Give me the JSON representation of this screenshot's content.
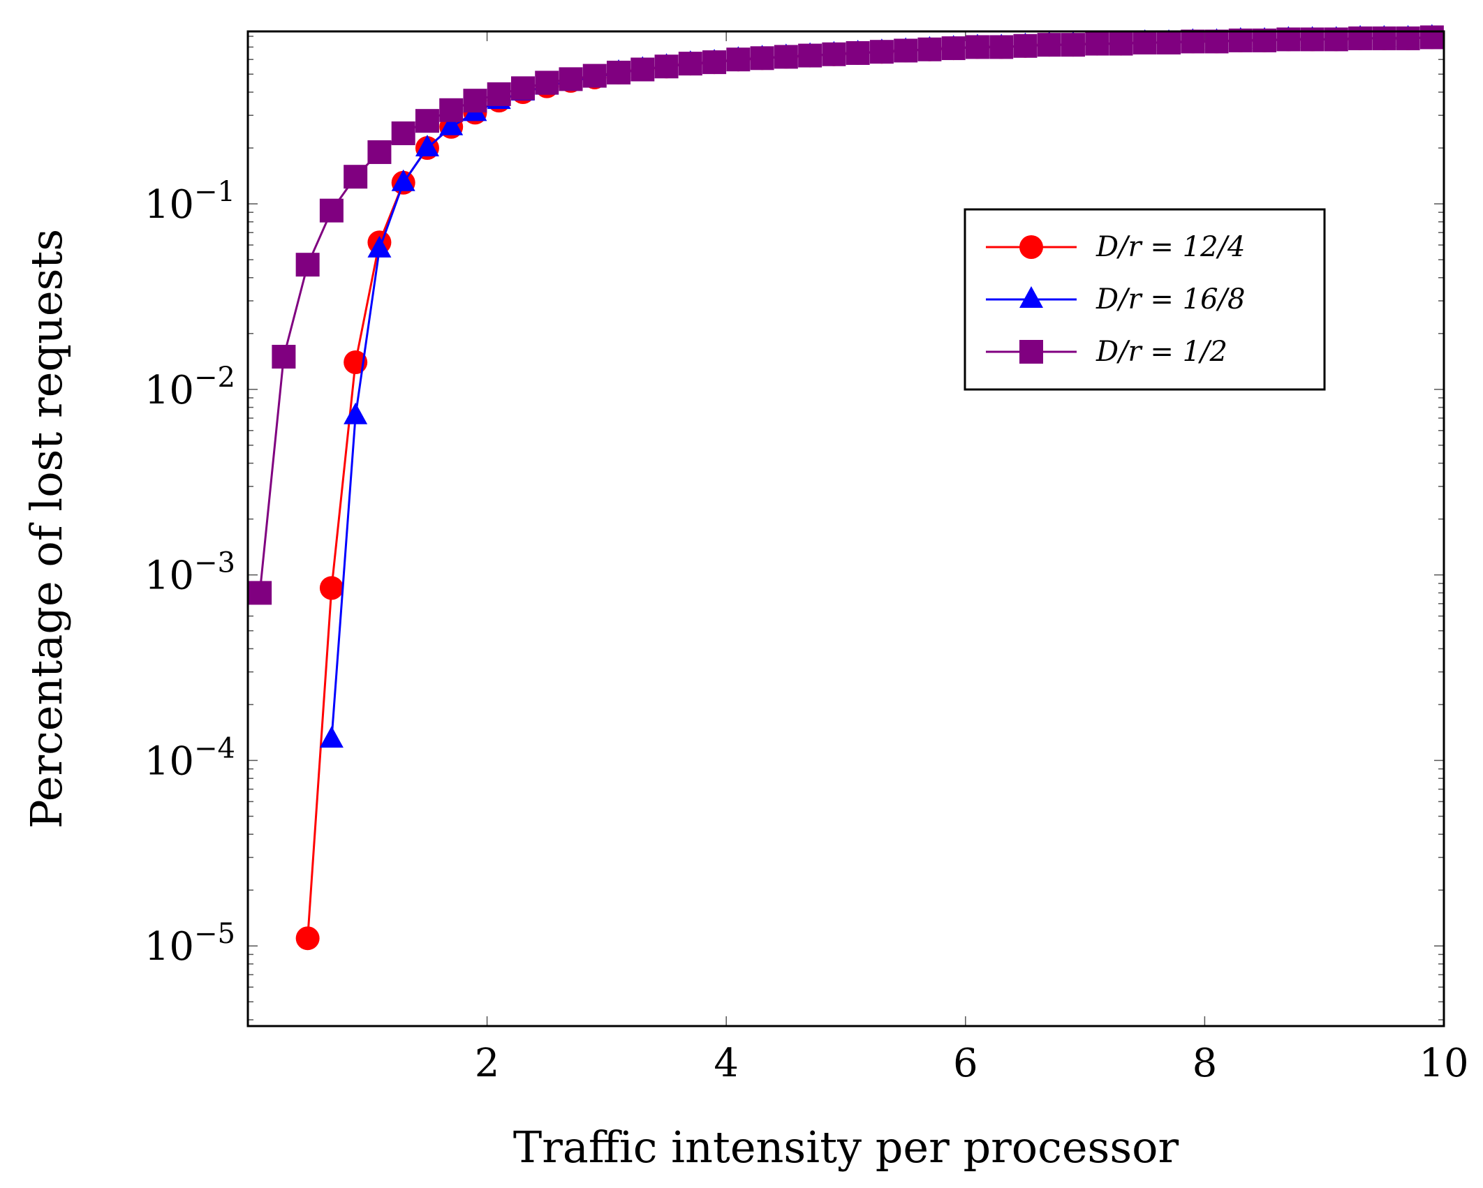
{
  "chart_data": {
    "type": "line",
    "title": "",
    "xlabel": "Traffic intensity per processor",
    "ylabel": "Percentage of lost requests",
    "xscale": "linear",
    "yscale": "log",
    "xlim": [
      0,
      10
    ],
    "ylim": [
      3.7e-06,
      0.85
    ],
    "xticks": [
      2,
      4,
      6,
      8,
      10
    ],
    "xtick_labels": [
      "2",
      "4",
      "6",
      "8",
      "10"
    ],
    "yticks": [
      1e-05,
      0.0001,
      0.001,
      0.01,
      0.1
    ],
    "ytick_labels": [
      {
        "base": "10",
        "exp": "−5"
      },
      {
        "base": "10",
        "exp": "−4"
      },
      {
        "base": "10",
        "exp": "−3"
      },
      {
        "base": "10",
        "exp": "−2"
      },
      {
        "base": "10",
        "exp": "−1"
      }
    ],
    "grid": false,
    "legend_position": "upper-right",
    "series": [
      {
        "name": "D/r = 12/4",
        "color": "#ff0000",
        "marker": "circle",
        "x": [
          0.5,
          0.7,
          0.9,
          1.1,
          1.3,
          1.5,
          1.7,
          1.9,
          2.1,
          2.3,
          2.5,
          2.7,
          2.9,
          3.1,
          3.3,
          3.5,
          3.7,
          3.9,
          4.1,
          4.3,
          4.5,
          4.7,
          4.9,
          5.1,
          5.3,
          5.5,
          5.7,
          5.9,
          6.1,
          6.3,
          6.5,
          6.7,
          6.9,
          7.1,
          7.3,
          7.5,
          7.7,
          7.9,
          8.1,
          8.3,
          8.5,
          8.7,
          8.9,
          9.1,
          9.3,
          9.5,
          9.7,
          9.9
        ],
        "y": [
          1.1e-05,
          0.00085,
          0.014,
          0.062,
          0.13,
          0.2,
          0.26,
          0.31,
          0.36,
          0.4,
          0.43,
          0.46,
          0.48,
          0.51,
          0.53,
          0.55,
          0.57,
          0.58,
          0.6,
          0.61,
          0.62,
          0.63,
          0.64,
          0.65,
          0.66,
          0.67,
          0.68,
          0.69,
          0.7,
          0.7,
          0.71,
          0.72,
          0.72,
          0.73,
          0.73,
          0.74,
          0.74,
          0.75,
          0.75,
          0.76,
          0.76,
          0.77,
          0.77,
          0.77,
          0.78,
          0.78,
          0.78,
          0.79
        ]
      },
      {
        "name": "D/r = 16/8",
        "color": "#0000ff",
        "marker": "triangle",
        "x": [
          0.7,
          0.9,
          1.1,
          1.3,
          1.5,
          1.7,
          1.9,
          2.1,
          2.3,
          2.5,
          2.7,
          2.9,
          3.1,
          3.3,
          3.5,
          3.7,
          3.9,
          4.1,
          4.3,
          4.5,
          4.7,
          4.9,
          5.1,
          5.3,
          5.5,
          5.7,
          5.9,
          6.1,
          6.3,
          6.5,
          6.7,
          6.9,
          7.1,
          7.3,
          7.5,
          7.7,
          7.9,
          8.1,
          8.3,
          8.5,
          8.7,
          8.9,
          9.1,
          9.3,
          9.5,
          9.7,
          9.9
        ],
        "y": [
          0.00013,
          0.0072,
          0.057,
          0.13,
          0.2,
          0.26,
          0.31,
          0.36,
          0.4,
          0.43,
          0.46,
          0.48,
          0.51,
          0.53,
          0.55,
          0.57,
          0.58,
          0.6,
          0.61,
          0.62,
          0.63,
          0.64,
          0.65,
          0.66,
          0.67,
          0.68,
          0.69,
          0.7,
          0.7,
          0.71,
          0.72,
          0.72,
          0.73,
          0.73,
          0.74,
          0.74,
          0.75,
          0.75,
          0.76,
          0.76,
          0.77,
          0.77,
          0.77,
          0.78,
          0.78,
          0.78,
          0.79
        ]
      },
      {
        "name": "D/r = 1/2",
        "color": "#800080",
        "marker": "square",
        "x": [
          0.1,
          0.3,
          0.5,
          0.7,
          0.9,
          1.1,
          1.3,
          1.5,
          1.7,
          1.9,
          2.1,
          2.3,
          2.5,
          2.7,
          2.9,
          3.1,
          3.3,
          3.5,
          3.7,
          3.9,
          4.1,
          4.3,
          4.5,
          4.7,
          4.9,
          5.1,
          5.3,
          5.5,
          5.7,
          5.9,
          6.1,
          6.3,
          6.5,
          6.7,
          6.9,
          7.1,
          7.3,
          7.5,
          7.7,
          7.9,
          8.1,
          8.3,
          8.5,
          8.7,
          8.9,
          9.1,
          9.3,
          9.5,
          9.7,
          9.9
        ],
        "y": [
          0.0008,
          0.015,
          0.047,
          0.092,
          0.14,
          0.19,
          0.24,
          0.28,
          0.32,
          0.36,
          0.39,
          0.42,
          0.45,
          0.47,
          0.49,
          0.51,
          0.53,
          0.55,
          0.57,
          0.58,
          0.6,
          0.61,
          0.62,
          0.63,
          0.64,
          0.65,
          0.66,
          0.67,
          0.68,
          0.69,
          0.7,
          0.7,
          0.71,
          0.72,
          0.72,
          0.73,
          0.73,
          0.74,
          0.74,
          0.75,
          0.75,
          0.76,
          0.76,
          0.77,
          0.77,
          0.77,
          0.78,
          0.78,
          0.78,
          0.79
        ]
      }
    ]
  }
}
